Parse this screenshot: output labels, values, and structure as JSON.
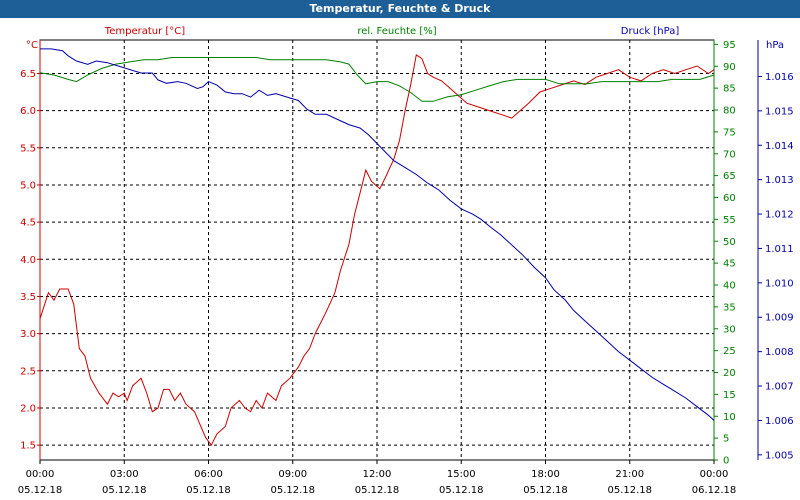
{
  "window": {
    "title": "Temperatur, Feuchte & Druck"
  },
  "colors": {
    "temperature": "#cc0000",
    "humidity": "#008000",
    "pressure": "#0000aa",
    "grid": "#000000",
    "titlebar": "#1f5f97"
  },
  "chart_data": {
    "type": "line",
    "title": "Temperatur, Feuchte & Druck",
    "x_labels": [
      {
        "time": "00:00",
        "date": "05.12.18"
      },
      {
        "time": "03:00",
        "date": "05.12.18"
      },
      {
        "time": "06:00",
        "date": "05.12.18"
      },
      {
        "time": "09:00",
        "date": "05.12.18"
      },
      {
        "time": "12:00",
        "date": "05.12.18"
      },
      {
        "time": "15:00",
        "date": "05.12.18"
      },
      {
        "time": "18:00",
        "date": "05.12.18"
      },
      {
        "time": "21:00",
        "date": "05.12.18"
      },
      {
        "time": "00:00",
        "date": "06.12.18"
      }
    ],
    "x_range_hours": [
      0,
      24
    ],
    "axes": {
      "temperature": {
        "unit": "°C",
        "label": "Temperatur [°C]",
        "range": [
          1.3,
          6.95
        ],
        "ticks": [
          "1.5",
          "2.0",
          "2.5",
          "3.0",
          "3.5",
          "4.0",
          "4.5",
          "5.0",
          "5.5",
          "6.0",
          "6.5"
        ]
      },
      "humidity": {
        "unit": "%",
        "label": "rel. Feuchte [%]",
        "range": [
          0,
          96
        ],
        "ticks": [
          "0",
          "5",
          "10",
          "15",
          "20",
          "25",
          "30",
          "35",
          "40",
          "45",
          "50",
          "55",
          "60",
          "65",
          "70",
          "75",
          "80",
          "85",
          "90",
          "95"
        ]
      },
      "pressure": {
        "unit": "hPa",
        "label": "Druck [hPa]",
        "range": [
          1.00485,
          1.01706
        ],
        "ticks": [
          "1.005",
          "1.006",
          "1.007",
          "1.008",
          "1.009",
          "1.010",
          "1.011",
          "1.012",
          "1.013",
          "1.014",
          "1.015",
          "1.016"
        ]
      }
    },
    "series": [
      {
        "name": "Temperatur [°C]",
        "axis": "temperature",
        "points": [
          [
            0,
            3.2
          ],
          [
            0.3,
            3.55
          ],
          [
            0.5,
            3.45
          ],
          [
            0.7,
            3.6
          ],
          [
            1.0,
            3.6
          ],
          [
            1.2,
            3.4
          ],
          [
            1.4,
            2.8
          ],
          [
            1.6,
            2.7
          ],
          [
            1.8,
            2.4
          ],
          [
            2.1,
            2.2
          ],
          [
            2.4,
            2.05
          ],
          [
            2.6,
            2.2
          ],
          [
            2.8,
            2.15
          ],
          [
            3.0,
            2.2
          ],
          [
            3.1,
            2.1
          ],
          [
            3.3,
            2.3
          ],
          [
            3.6,
            2.4
          ],
          [
            3.8,
            2.2
          ],
          [
            4.0,
            1.95
          ],
          [
            4.2,
            2.0
          ],
          [
            4.4,
            2.25
          ],
          [
            4.6,
            2.25
          ],
          [
            4.8,
            2.1
          ],
          [
            5.0,
            2.2
          ],
          [
            5.2,
            2.05
          ],
          [
            5.5,
            1.95
          ],
          [
            5.9,
            1.6
          ],
          [
            6.1,
            1.5
          ],
          [
            6.3,
            1.65
          ],
          [
            6.6,
            1.75
          ],
          [
            6.8,
            2.0
          ],
          [
            7.1,
            2.1
          ],
          [
            7.3,
            2.0
          ],
          [
            7.5,
            1.95
          ],
          [
            7.7,
            2.1
          ],
          [
            7.9,
            2.0
          ],
          [
            8.1,
            2.2
          ],
          [
            8.4,
            2.1
          ],
          [
            8.6,
            2.3
          ],
          [
            8.9,
            2.4
          ],
          [
            9.2,
            2.55
          ],
          [
            9.4,
            2.7
          ],
          [
            9.6,
            2.8
          ],
          [
            9.8,
            3.0
          ],
          [
            10.0,
            3.15
          ],
          [
            10.2,
            3.3
          ],
          [
            10.5,
            3.55
          ],
          [
            10.7,
            3.85
          ],
          [
            11.0,
            4.2
          ],
          [
            11.2,
            4.6
          ],
          [
            11.4,
            4.9
          ],
          [
            11.6,
            5.2
          ],
          [
            11.8,
            5.05
          ],
          [
            12.1,
            4.95
          ],
          [
            12.3,
            5.1
          ],
          [
            12.6,
            5.35
          ],
          [
            12.8,
            5.6
          ],
          [
            13.0,
            6.0
          ],
          [
            13.2,
            6.35
          ],
          [
            13.4,
            6.75
          ],
          [
            13.6,
            6.7
          ],
          [
            13.8,
            6.5
          ],
          [
            14.0,
            6.45
          ],
          [
            14.3,
            6.4
          ],
          [
            14.6,
            6.3
          ],
          [
            14.9,
            6.2
          ],
          [
            15.2,
            6.1
          ],
          [
            15.6,
            6.05
          ],
          [
            16.0,
            6.0
          ],
          [
            16.4,
            5.95
          ],
          [
            16.8,
            5.9
          ],
          [
            17.1,
            6.0
          ],
          [
            17.4,
            6.1
          ],
          [
            17.8,
            6.25
          ],
          [
            18.2,
            6.3
          ],
          [
            18.6,
            6.35
          ],
          [
            19.0,
            6.4
          ],
          [
            19.4,
            6.35
          ],
          [
            19.8,
            6.45
          ],
          [
            20.2,
            6.5
          ],
          [
            20.6,
            6.55
          ],
          [
            21.0,
            6.45
          ],
          [
            21.4,
            6.4
          ],
          [
            21.8,
            6.5
          ],
          [
            22.2,
            6.55
          ],
          [
            22.6,
            6.5
          ],
          [
            23.0,
            6.55
          ],
          [
            23.4,
            6.6
          ],
          [
            23.8,
            6.5
          ],
          [
            24.0,
            6.55
          ]
        ]
      },
      {
        "name": "rel. Feuchte [%]",
        "axis": "humidity",
        "points": [
          [
            0,
            88.5
          ],
          [
            0.5,
            88
          ],
          [
            1.0,
            87
          ],
          [
            1.3,
            86.5
          ],
          [
            1.7,
            88
          ],
          [
            2.2,
            89.5
          ],
          [
            2.7,
            90.5
          ],
          [
            3.2,
            91
          ],
          [
            3.7,
            91.5
          ],
          [
            4.2,
            91.5
          ],
          [
            4.7,
            92
          ],
          [
            5.2,
            92
          ],
          [
            5.7,
            92
          ],
          [
            6.2,
            92
          ],
          [
            6.7,
            92
          ],
          [
            7.2,
            92
          ],
          [
            7.7,
            92
          ],
          [
            8.2,
            91.5
          ],
          [
            8.7,
            91.5
          ],
          [
            9.2,
            91.5
          ],
          [
            9.7,
            91.5
          ],
          [
            10.2,
            91.5
          ],
          [
            10.7,
            91
          ],
          [
            11.0,
            90.5
          ],
          [
            11.3,
            88
          ],
          [
            11.6,
            86
          ],
          [
            12.0,
            86.5
          ],
          [
            12.4,
            86.5
          ],
          [
            12.8,
            85.5
          ],
          [
            13.2,
            84
          ],
          [
            13.6,
            82
          ],
          [
            14.0,
            82
          ],
          [
            14.5,
            83
          ],
          [
            15.0,
            83.5
          ],
          [
            15.5,
            84.5
          ],
          [
            16.0,
            85.5
          ],
          [
            16.5,
            86.5
          ],
          [
            17.0,
            87
          ],
          [
            17.5,
            87
          ],
          [
            18.0,
            87
          ],
          [
            18.5,
            86
          ],
          [
            19.0,
            86
          ],
          [
            19.5,
            86
          ],
          [
            20.0,
            86.5
          ],
          [
            20.5,
            86.5
          ],
          [
            21.0,
            86.5
          ],
          [
            21.5,
            86.5
          ],
          [
            22.0,
            86.5
          ],
          [
            22.5,
            87
          ],
          [
            23.0,
            87
          ],
          [
            23.5,
            87
          ],
          [
            24.0,
            88
          ]
        ]
      },
      {
        "name": "Druck [hPa]",
        "axis": "pressure",
        "points": [
          [
            0,
            1.0168
          ],
          [
            0.4,
            1.0168
          ],
          [
            0.8,
            1.01675
          ],
          [
            1.0,
            1.0166
          ],
          [
            1.3,
            1.01645
          ],
          [
            1.7,
            1.01635
          ],
          [
            2.0,
            1.01645
          ],
          [
            2.4,
            1.0164
          ],
          [
            2.8,
            1.0163
          ],
          [
            3.2,
            1.0162
          ],
          [
            3.6,
            1.0161
          ],
          [
            4.0,
            1.0161
          ],
          [
            4.2,
            1.0159
          ],
          [
            4.5,
            1.0158
          ],
          [
            4.9,
            1.01585
          ],
          [
            5.2,
            1.0158
          ],
          [
            5.6,
            1.01565
          ],
          [
            5.8,
            1.0157
          ],
          [
            6.0,
            1.01585
          ],
          [
            6.3,
            1.01575
          ],
          [
            6.6,
            1.01555
          ],
          [
            6.9,
            1.0155
          ],
          [
            7.2,
            1.0155
          ],
          [
            7.5,
            1.0154
          ],
          [
            7.8,
            1.0156
          ],
          [
            8.1,
            1.01545
          ],
          [
            8.4,
            1.0155
          ],
          [
            8.8,
            1.0154
          ],
          [
            9.2,
            1.0153
          ],
          [
            9.5,
            1.01505
          ],
          [
            9.8,
            1.0149
          ],
          [
            10.2,
            1.0149
          ],
          [
            10.6,
            1.01475
          ],
          [
            11.0,
            1.0146
          ],
          [
            11.4,
            1.0145
          ],
          [
            11.7,
            1.0143
          ],
          [
            12.0,
            1.01405
          ],
          [
            12.3,
            1.0138
          ],
          [
            12.6,
            1.01355
          ],
          [
            13.0,
            1.01335
          ],
          [
            13.4,
            1.01315
          ],
          [
            13.8,
            1.0129
          ],
          [
            14.2,
            1.0127
          ],
          [
            14.6,
            1.0124
          ],
          [
            15.0,
            1.01215
          ],
          [
            15.4,
            1.012
          ],
          [
            15.7,
            1.01185
          ],
          [
            16.0,
            1.01165
          ],
          [
            16.4,
            1.0114
          ],
          [
            16.8,
            1.0111
          ],
          [
            17.2,
            1.0108
          ],
          [
            17.6,
            1.01045
          ],
          [
            18.0,
            1.01015
          ],
          [
            18.3,
            1.0098
          ],
          [
            18.7,
            1.0095
          ],
          [
            19.0,
            1.0092
          ],
          [
            19.4,
            1.0089
          ],
          [
            19.8,
            1.0086
          ],
          [
            20.2,
            1.0083
          ],
          [
            20.6,
            1.008
          ],
          [
            21.0,
            1.00775
          ],
          [
            21.4,
            1.0075
          ],
          [
            21.8,
            1.00725
          ],
          [
            22.2,
            1.00705
          ],
          [
            22.6,
            1.00685
          ],
          [
            23.0,
            1.00665
          ],
          [
            23.4,
            1.0064
          ],
          [
            23.8,
            1.00615
          ],
          [
            24.0,
            1.006
          ]
        ]
      }
    ]
  }
}
